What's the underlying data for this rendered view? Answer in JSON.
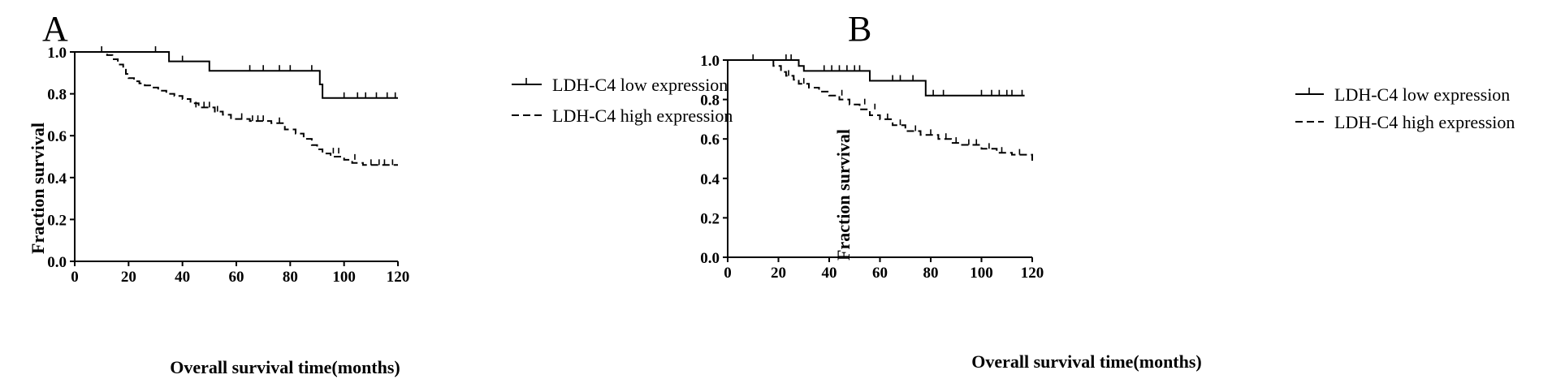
{
  "chart_data": [
    {
      "type": "line",
      "panel": "A",
      "xlabel": "Overall survival time(months)",
      "ylabel": "Fraction survival",
      "xlim": [
        0,
        120
      ],
      "ylim": [
        0.0,
        1.0
      ],
      "xticks": [
        "0",
        "20",
        "40",
        "60",
        "80",
        "100",
        "120"
      ],
      "yticks": [
        "0.0",
        "0.2",
        "0.4",
        "0.6",
        "0.8",
        "1.0"
      ],
      "legend_position": "top-right",
      "series": [
        {
          "name": "LDH-C4 low expression",
          "style": "solid",
          "x": [
            0,
            35,
            35,
            50,
            50,
            91,
            91,
            92,
            92,
            120
          ],
          "y": [
            1.0,
            1.0,
            0.955,
            0.955,
            0.91,
            0.91,
            0.845,
            0.845,
            0.78,
            0.78
          ],
          "censored": [
            [
              30,
              1.0
            ],
            [
              40,
              0.955
            ],
            [
              65,
              0.91
            ],
            [
              70,
              0.91
            ],
            [
              76,
              0.91
            ],
            [
              80,
              0.91
            ],
            [
              88,
              0.91
            ],
            [
              100,
              0.78
            ],
            [
              105,
              0.78
            ],
            [
              108,
              0.78
            ],
            [
              112,
              0.78
            ],
            [
              116,
              0.78
            ],
            [
              119,
              0.78
            ]
          ]
        },
        {
          "name": "LDH-C4 high expression",
          "style": "dashed",
          "x": [
            0,
            12,
            12,
            14,
            14,
            16,
            16,
            18,
            18,
            19,
            19,
            20,
            20,
            22,
            22,
            24,
            24,
            26,
            26,
            28,
            28,
            31,
            31,
            34,
            34,
            37,
            37,
            40,
            40,
            43,
            43,
            46,
            46,
            52,
            52,
            55,
            55,
            58,
            58,
            65,
            65,
            73,
            73,
            78,
            78,
            82,
            82,
            85,
            85,
            88,
            88,
            90,
            90,
            92,
            92,
            95,
            95,
            100,
            100,
            103,
            103,
            107,
            107,
            120
          ],
          "y": [
            1.0,
            1.0,
            0.985,
            0.985,
            0.965,
            0.965,
            0.94,
            0.94,
            0.915,
            0.915,
            0.895,
            0.895,
            0.875,
            0.875,
            0.86,
            0.86,
            0.85,
            0.85,
            0.84,
            0.84,
            0.83,
            0.83,
            0.815,
            0.815,
            0.8,
            0.8,
            0.79,
            0.79,
            0.775,
            0.775,
            0.755,
            0.755,
            0.735,
            0.735,
            0.715,
            0.715,
            0.7,
            0.7,
            0.68,
            0.68,
            0.67,
            0.67,
            0.66,
            0.66,
            0.63,
            0.63,
            0.61,
            0.61,
            0.585,
            0.585,
            0.555,
            0.555,
            0.535,
            0.535,
            0.515,
            0.515,
            0.5,
            0.5,
            0.485,
            0.485,
            0.47,
            0.47,
            0.46,
            0.46
          ],
          "censored": [
            [
              10,
              1.0
            ],
            [
              45,
              0.735
            ],
            [
              48,
              0.735
            ],
            [
              50,
              0.735
            ],
            [
              53,
              0.715
            ],
            [
              62,
              0.68
            ],
            [
              66,
              0.67
            ],
            [
              68,
              0.67
            ],
            [
              70,
              0.67
            ],
            [
              76,
              0.66
            ],
            [
              96,
              0.515
            ],
            [
              98,
              0.515
            ],
            [
              104,
              0.485
            ],
            [
              110,
              0.46
            ],
            [
              113,
              0.46
            ],
            [
              115,
              0.46
            ],
            [
              118,
              0.46
            ]
          ]
        }
      ]
    },
    {
      "type": "line",
      "panel": "B",
      "xlabel": "Overall survival time(months)",
      "ylabel": "Fraction survival",
      "xlim": [
        0,
        120
      ],
      "ylim": [
        0.0,
        1.0
      ],
      "xticks": [
        "0",
        "20",
        "40",
        "60",
        "80",
        "100",
        "120"
      ],
      "yticks": [
        "0.0",
        "0.2",
        "0.4",
        "0.6",
        "0.8",
        "1.0"
      ],
      "legend_position": "top-right",
      "series": [
        {
          "name": "LDH-C4 low expression",
          "style": "solid",
          "x": [
            0,
            28,
            28,
            30,
            30,
            56,
            56,
            78,
            78,
            117
          ],
          "y": [
            1.0,
            1.0,
            0.97,
            0.97,
            0.945,
            0.945,
            0.895,
            0.895,
            0.82,
            0.82
          ],
          "censored": [
            [
              10,
              1.0
            ],
            [
              23,
              1.0
            ],
            [
              25,
              1.0
            ],
            [
              38,
              0.945
            ],
            [
              41,
              0.945
            ],
            [
              44,
              0.945
            ],
            [
              47,
              0.945
            ],
            [
              50,
              0.945
            ],
            [
              52,
              0.945
            ],
            [
              65,
              0.895
            ],
            [
              68,
              0.895
            ],
            [
              73,
              0.895
            ],
            [
              81,
              0.82
            ],
            [
              85,
              0.82
            ],
            [
              100,
              0.82
            ],
            [
              104,
              0.82
            ],
            [
              107,
              0.82
            ],
            [
              110,
              0.82
            ],
            [
              112,
              0.82
            ],
            [
              116,
              0.82
            ]
          ]
        },
        {
          "name": "LDH-C4 high expression",
          "style": "dashed",
          "x": [
            0,
            18,
            18,
            21,
            21,
            23,
            23,
            26,
            26,
            28,
            28,
            32,
            32,
            36,
            36,
            40,
            40,
            44,
            44,
            48,
            48,
            52,
            52,
            56,
            56,
            60,
            60,
            65,
            65,
            70,
            70,
            76,
            76,
            83,
            83,
            88,
            88,
            92,
            92,
            100,
            100,
            106,
            106,
            112,
            112,
            120,
            120
          ],
          "y": [
            1.0,
            1.0,
            0.97,
            0.97,
            0.94,
            0.94,
            0.92,
            0.92,
            0.9,
            0.9,
            0.88,
            0.88,
            0.86,
            0.86,
            0.84,
            0.84,
            0.82,
            0.82,
            0.8,
            0.8,
            0.775,
            0.775,
            0.75,
            0.75,
            0.72,
            0.72,
            0.7,
            0.7,
            0.67,
            0.67,
            0.64,
            0.64,
            0.62,
            0.62,
            0.6,
            0.6,
            0.58,
            0.58,
            0.57,
            0.57,
            0.55,
            0.55,
            0.53,
            0.53,
            0.52,
            0.52,
            0.47
          ],
          "censored": [
            [
              24,
              0.92
            ],
            [
              30,
              0.88
            ],
            [
              45,
              0.82
            ],
            [
              54,
              0.775
            ],
            [
              58,
              0.75
            ],
            [
              63,
              0.7
            ],
            [
              68,
              0.67
            ],
            [
              74,
              0.64
            ],
            [
              80,
              0.62
            ],
            [
              86,
              0.6
            ],
            [
              90,
              0.58
            ],
            [
              95,
              0.57
            ],
            [
              98,
              0.57
            ],
            [
              103,
              0.55
            ],
            [
              108,
              0.53
            ],
            [
              115,
              0.52
            ]
          ]
        }
      ]
    }
  ]
}
